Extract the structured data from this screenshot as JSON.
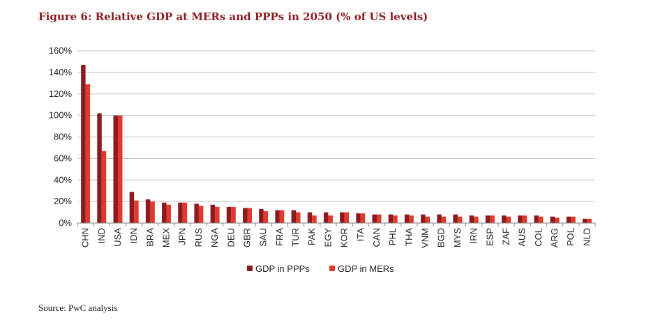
{
  "figure_title": "Figure 6: Relative GDP at MERs and PPPs in 2050 (% of US levels)",
  "source_note": "Source: PwC analysis",
  "colors": {
    "title": "#8b1a1f",
    "ppp": "#8c1b1f",
    "mer": "#e03a2e",
    "grid": "#bfbfbf",
    "axis": "#808080"
  },
  "chart_data": {
    "type": "bar",
    "title": "Figure 6: Relative GDP at MERs and PPPs in 2050 (% of US levels)",
    "xlabel": "",
    "ylabel": "",
    "ylim": [
      0,
      160
    ],
    "yticks": [
      0,
      20,
      40,
      60,
      80,
      100,
      120,
      140,
      160
    ],
    "ytick_labels": [
      "0%",
      "20%",
      "40%",
      "60%",
      "80%",
      "100%",
      "120%",
      "140%",
      "160%"
    ],
    "grid": true,
    "legend": "bottom-center",
    "categories": [
      "CHN",
      "IND",
      "USA",
      "IDN",
      "BRA",
      "MEX",
      "JPN",
      "RUS",
      "NGA",
      "DEU",
      "GBR",
      "SAU",
      "FRA",
      "TUR",
      "PAK",
      "EGY",
      "KOR",
      "ITA",
      "CAN",
      "PHL",
      "THA",
      "VNM",
      "BGD",
      "MYS",
      "IRN",
      "ESP",
      "ZAF",
      "AUS",
      "COL",
      "ARG",
      "POL",
      "NLD"
    ],
    "series": [
      {
        "name": "GDP in PPPs",
        "values": [
          147,
          102,
          100,
          29,
          22,
          19,
          19,
          18,
          17,
          15,
          14,
          13,
          12,
          12,
          10,
          10,
          10,
          9,
          8,
          8,
          8,
          8,
          8,
          8,
          7,
          7,
          7,
          7,
          7,
          6,
          6,
          4
        ]
      },
      {
        "name": "GDP in MERs",
        "values": [
          129,
          67,
          100,
          21,
          20,
          17,
          19,
          16,
          15,
          15,
          14,
          11,
          12,
          10,
          7,
          7,
          10,
          9,
          8,
          7,
          7,
          6,
          6,
          6,
          6,
          7,
          6,
          7,
          6,
          5,
          6,
          4
        ]
      }
    ]
  }
}
